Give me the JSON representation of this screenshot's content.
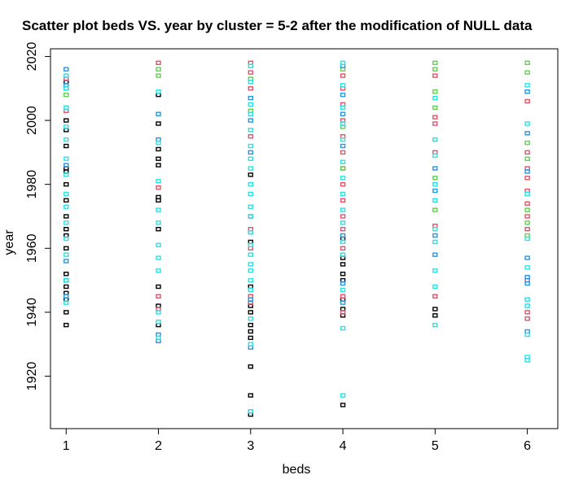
{
  "chart_data": {
    "type": "scatter",
    "title": "Scatter plot beds VS. year by cluster = 5-2 after the modification of NULL data",
    "x_label": "beds",
    "y_label": "year",
    "xlim": [
      0.83,
      6.33
    ],
    "ylim": [
      1903.6,
      2022.4
    ],
    "xticks": [
      1,
      2,
      3,
      4,
      5,
      6
    ],
    "yticks": [
      1920,
      1940,
      1960,
      1980,
      2000,
      2020
    ],
    "series": [
      {
        "color": "#000000",
        "x": [
          1,
          1,
          1,
          1,
          1,
          1,
          1,
          1,
          1,
          1,
          1,
          1,
          1,
          1,
          1,
          1,
          1,
          1,
          1,
          1,
          2,
          2,
          2,
          2,
          2,
          2,
          2,
          2,
          2,
          2,
          2,
          3,
          3,
          3,
          3,
          3,
          3,
          3,
          3,
          3,
          3,
          3,
          3,
          4,
          4,
          4,
          4,
          4,
          4,
          4,
          4,
          4,
          5,
          5
        ],
        "values": [
          1936,
          1940,
          1944,
          1946,
          1948,
          1950,
          1952,
          1960,
          1964,
          1966,
          1970,
          1975,
          1980,
          1984,
          1985,
          1992,
          1997,
          2000,
          2010,
          2012,
          1936,
          1942,
          1948,
          1966,
          1975,
          1976,
          1986,
          1988,
          1991,
          1999,
          2008,
          1908,
          1914,
          1923,
          1932,
          1934,
          1936,
          1940,
          1942,
          1943,
          1948,
          1962,
          1983,
          1911,
          1939,
          1941,
          1944,
          1950,
          1952,
          1955,
          1957,
          1963,
          1939,
          1941
        ]
      },
      {
        "color": "#DF536B",
        "x": [
          1,
          1,
          2,
          2,
          2,
          2,
          3,
          3,
          3,
          3,
          3,
          3,
          3,
          3,
          3,
          4,
          4,
          4,
          4,
          4,
          4,
          4,
          4,
          4,
          4,
          4,
          4,
          4,
          4,
          5,
          5,
          5,
          5,
          5,
          5,
          6,
          6,
          6,
          6,
          6,
          6,
          6,
          6,
          6,
          6,
          6
        ],
        "values": [
          2003,
          2013,
          1941,
          1945,
          1979,
          2018,
          1943,
          1945,
          1960,
          1966,
          1970,
          1995,
          2010,
          2015,
          2018,
          1940,
          1945,
          1960,
          1966,
          1970,
          1975,
          1980,
          1985,
          1990,
          1995,
          2000,
          2005,
          2010,
          2014,
          1945,
          1967,
          1990,
          1999,
          2001,
          2014,
          1938,
          1940,
          1950,
          1966,
          1970,
          1974,
          1978,
          1982,
          1985,
          1990,
          2006
        ]
      },
      {
        "color": "#61D04F",
        "x": [
          1,
          2,
          2,
          3,
          3,
          4,
          4,
          4,
          5,
          5,
          5,
          5,
          5,
          5,
          6,
          6,
          6,
          6,
          6,
          6,
          6
        ],
        "values": [
          2008,
          2014,
          2016,
          2003,
          2013,
          1985,
          1998,
          2016,
          1972,
          1982,
          2004,
          2009,
          2016,
          2018,
          1964,
          1968,
          1972,
          1988,
          1993,
          2015,
          2018
        ]
      },
      {
        "color": "#2297E6",
        "x": [
          1,
          1,
          1,
          1,
          1,
          2,
          2,
          2,
          2,
          3,
          3,
          3,
          3,
          3,
          3,
          3,
          4,
          4,
          4,
          4,
          4,
          4,
          4,
          5,
          5,
          5,
          5,
          6,
          6,
          6,
          6,
          6,
          6,
          6
        ],
        "values": [
          1945,
          1956,
          1986,
          2011,
          2016,
          1931,
          1933,
          1994,
          2002,
          1909,
          1929,
          1944,
          1965,
          1990,
          2000,
          2007,
          1943,
          1949,
          1964,
          1992,
          2002,
          2008,
          2017,
          1958,
          1964,
          1978,
          1985,
          1934,
          1949,
          1951,
          1957,
          1984,
          1996,
          2009
        ]
      },
      {
        "color": "#28E2E5",
        "x": [
          1,
          1,
          1,
          1,
          1,
          1,
          1,
          1,
          1,
          1,
          1,
          1,
          1,
          1,
          2,
          2,
          2,
          2,
          2,
          2,
          2,
          2,
          2,
          2,
          2,
          3,
          3,
          3,
          3,
          3,
          3,
          3,
          3,
          3,
          3,
          3,
          3,
          3,
          3,
          3,
          3,
          3,
          3,
          3,
          3,
          3,
          3,
          4,
          4,
          4,
          4,
          4,
          4,
          4,
          4,
          4,
          4,
          4,
          4,
          4,
          4,
          4,
          5,
          5,
          5,
          5,
          5,
          5,
          5,
          5,
          5,
          5,
          6,
          6,
          6,
          6,
          6,
          6,
          6,
          6,
          6,
          6
        ],
        "values": [
          1943,
          1950,
          1958,
          1963,
          1968,
          1973,
          1977,
          1983,
          1988,
          1994,
          1998,
          2004,
          2010,
          2014,
          1932,
          1937,
          1940,
          1953,
          1957,
          1961,
          1968,
          1972,
          1981,
          1993,
          2009,
          1909,
          1930,
          1938,
          1947,
          1950,
          1953,
          1955,
          1958,
          1961,
          1965,
          1970,
          1973,
          1977,
          1980,
          1985,
          1988,
          1992,
          1997,
          2002,
          2005,
          2012,
          2017,
          1914,
          1935,
          1947,
          1958,
          1962,
          1968,
          1972,
          1977,
          1982,
          1987,
          1994,
          1999,
          2004,
          2011,
          2018,
          1936,
          1948,
          1953,
          1962,
          1966,
          1975,
          1980,
          1989,
          1994,
          2007,
          1925,
          1926,
          1933,
          1942,
          1944,
          1954,
          1963,
          1977,
          1999,
          2011
        ]
      }
    ]
  }
}
